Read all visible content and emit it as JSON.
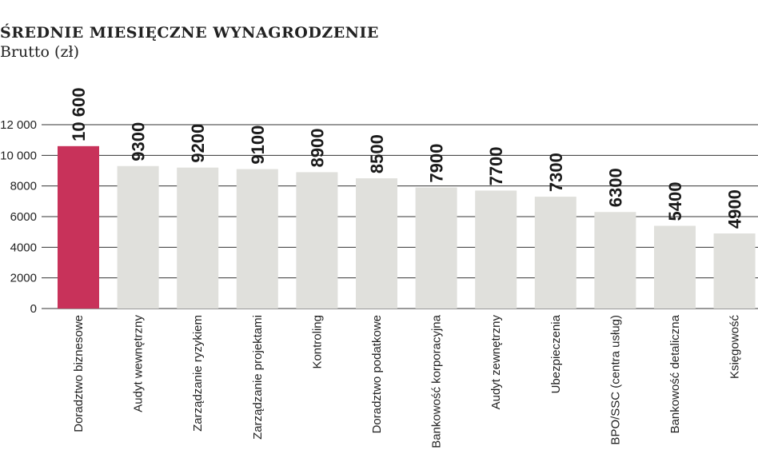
{
  "chart_data": {
    "type": "bar",
    "title": "Średnie miesięczne wynagrodzenie",
    "subtitle": "Brutto (zł)",
    "categories": [
      "Doradztwo biznesowe",
      "Audyt wewnętrzny",
      "Zarządzanie ryzykiem",
      "Zarządzanie projektami",
      "Kontroling",
      "Doradztwo podatkowe",
      "Bankowość korporacyjna",
      "Audyt zewnętrzny",
      "Ubezpieczenia",
      "BPO/SSC (centra usług)",
      "Bankowość detaliczna",
      "Księgowość"
    ],
    "values": [
      10600,
      9300,
      9200,
      9100,
      8900,
      8500,
      7900,
      7700,
      7300,
      6300,
      5400,
      4900
    ],
    "value_labels": [
      "10 600",
      "9300",
      "9200",
      "9100",
      "8900",
      "8500",
      "7900",
      "7700",
      "7300",
      "6300",
      "5400",
      "4900"
    ],
    "ylim": [
      0,
      12000
    ],
    "yticks": [
      0,
      2000,
      4000,
      6000,
      8000,
      10000,
      12000
    ],
    "ytick_labels": [
      "0",
      "2000",
      "4000",
      "6000",
      "8000",
      "10 000",
      "12 000"
    ],
    "grid": true,
    "colors": {
      "highlight": "#c8325a",
      "bar": "#e0e0dc",
      "grid": "#333333"
    },
    "highlight_index": 0
  }
}
